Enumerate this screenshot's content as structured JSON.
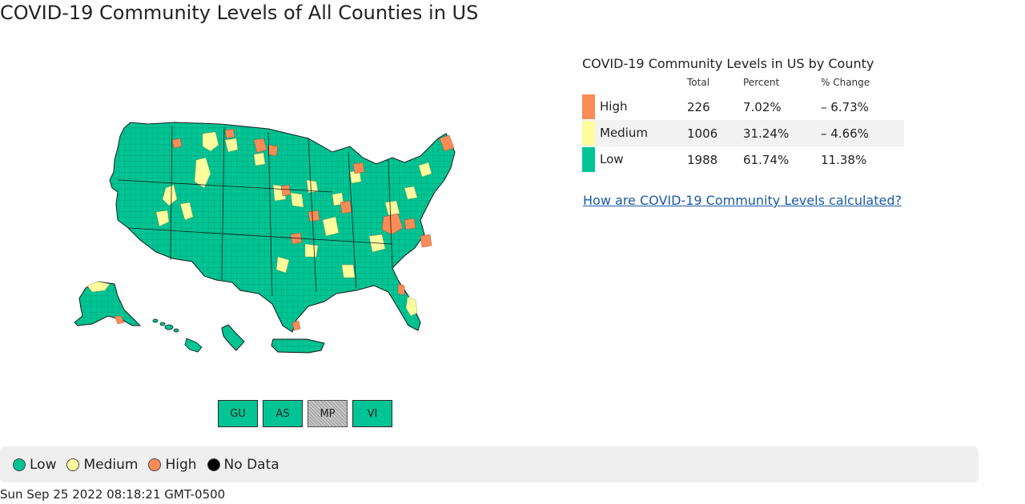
{
  "page": {
    "title": "COVID-19 Community Levels of All Counties in US"
  },
  "colors": {
    "low": "#00c494",
    "medium": "#fdfd9e",
    "high": "#fb8b57",
    "no_data": "#000000",
    "link": "#1a5aa8"
  },
  "map": {
    "territories": [
      {
        "label": "GU",
        "level": "low"
      },
      {
        "label": "AS",
        "level": "low"
      },
      {
        "label": "MP",
        "level": "no_data"
      },
      {
        "label": "VI",
        "level": "low"
      }
    ]
  },
  "summary": {
    "title": "COVID-19 Community Levels in US by County",
    "headers": {
      "total": "Total",
      "percent": "Percent",
      "change": "% Change"
    },
    "rows": [
      {
        "level": "High",
        "color": "#fb8b57",
        "total": "226",
        "percent": "7.02%",
        "change": "– 6.73%"
      },
      {
        "level": "Medium",
        "color": "#fdfd9e",
        "total": "1006",
        "percent": "31.24%",
        "change": "– 4.66%"
      },
      {
        "level": "Low",
        "color": "#00c494",
        "total": "1988",
        "percent": "61.74%",
        "change": "11.38%"
      }
    ],
    "link_text": "How are COVID-19 Community Levels calculated?"
  },
  "legend": {
    "items": [
      {
        "label": "Low",
        "color": "#00c494"
      },
      {
        "label": "Medium",
        "color": "#fdfd9e"
      },
      {
        "label": "High",
        "color": "#fb8b57"
      },
      {
        "label": "No Data",
        "color": "#000000"
      }
    ]
  },
  "footer": {
    "timestamp": "Sun Sep 25 2022 08:18:21 GMT-0500"
  }
}
